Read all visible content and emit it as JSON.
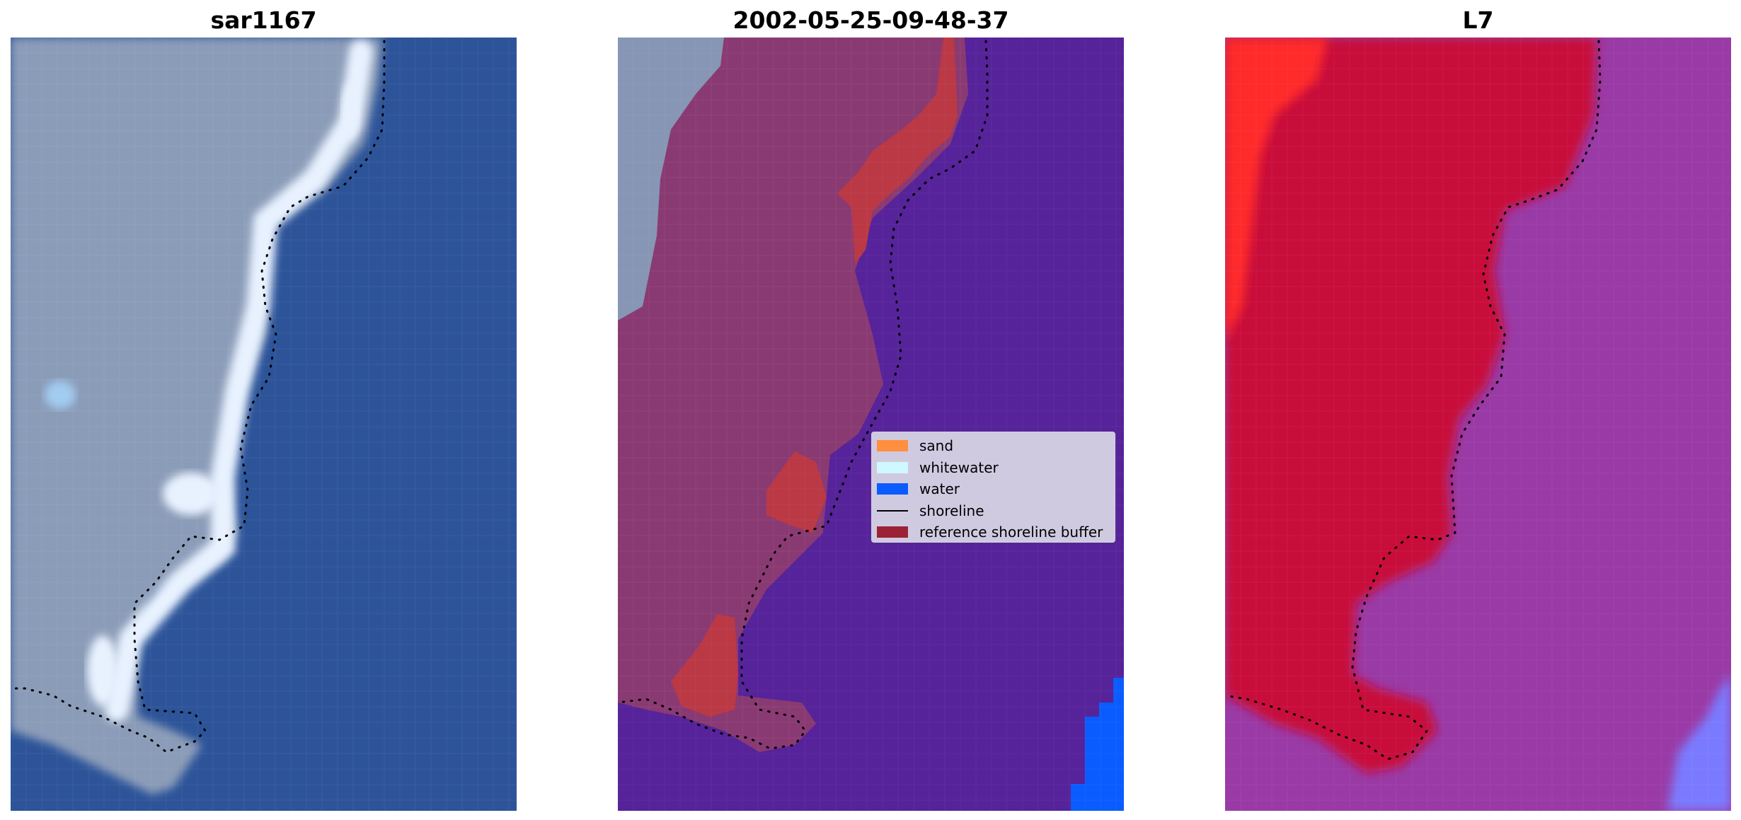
{
  "panels": [
    {
      "title": "sar1167"
    },
    {
      "title": "2002-05-25-09-48-37"
    },
    {
      "title": "L7"
    }
  ],
  "legend": {
    "items": [
      {
        "label": "sand",
        "color": "#ff8f3f",
        "kind": "patch"
      },
      {
        "label": "whitewater",
        "color": "#cff8ff",
        "kind": "patch"
      },
      {
        "label": "water",
        "color": "#0a5cff",
        "kind": "patch"
      },
      {
        "label": "shoreline",
        "color": "#000000",
        "kind": "line"
      },
      {
        "label": "reference shoreline buffer",
        "color": "#9b2235",
        "kind": "patch"
      }
    ]
  },
  "colors": {
    "ocean_rgb": "#2d5499",
    "land_rgb": "#8b9cb8",
    "whitewater_rgb": "#e8f2ff",
    "classified_water": "#56239a",
    "classified_land": "#8a3a72",
    "classified_buffer": "#bb3845",
    "classified_sea_water": "#0a5cff",
    "mndwi_land": "#c8103a",
    "mndwi_land_bright": "#ff2a2a",
    "mndwi_water": "#9a3aa6",
    "mndwi_water_blue": "#7a7aff",
    "shoreline_dots": "#000000"
  }
}
